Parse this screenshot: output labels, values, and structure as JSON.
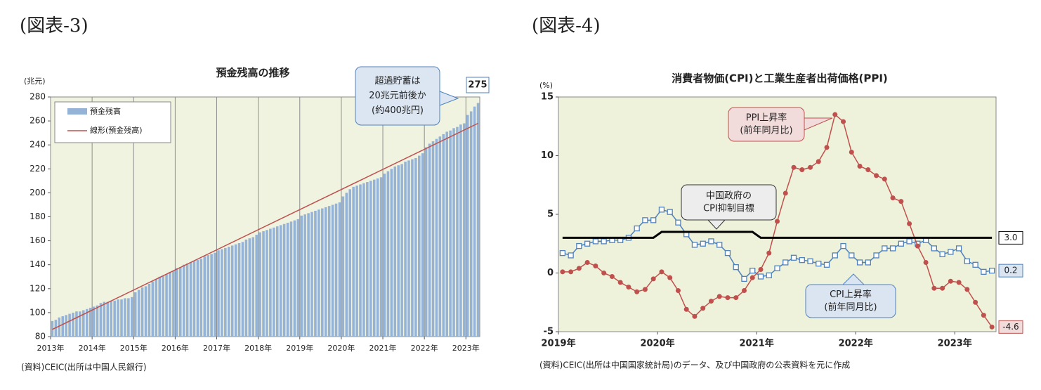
{
  "chart_data": [
    {
      "type": "bar",
      "figure_label": "(図表-3)",
      "title": "預金残高の推移",
      "y_unit": "(兆元)",
      "source": "(資料)CEIC(出所は中国人民銀行)",
      "background": "#f1f3e1",
      "xgrid": true,
      "legend": "upper left",
      "categories": [
        "2013年",
        null,
        null,
        null,
        null,
        null,
        null,
        null,
        null,
        null,
        null,
        null,
        "2014年",
        null,
        null,
        null,
        null,
        null,
        null,
        null,
        null,
        null,
        null,
        null,
        "2015年",
        null,
        null,
        null,
        null,
        null,
        null,
        null,
        null,
        null,
        null,
        null,
        "2016年",
        null,
        null,
        null,
        null,
        null,
        null,
        null,
        null,
        null,
        null,
        null,
        "2017年",
        null,
        null,
        null,
        null,
        null,
        null,
        null,
        null,
        null,
        null,
        null,
        "2018年",
        null,
        null,
        null,
        null,
        null,
        null,
        null,
        null,
        null,
        null,
        null,
        "2019年",
        null,
        null,
        null,
        null,
        null,
        null,
        null,
        null,
        null,
        null,
        null,
        "2020年",
        null,
        null,
        null,
        null,
        null,
        null,
        null,
        null,
        null,
        null,
        null,
        "2021年",
        null,
        null,
        null,
        null,
        null,
        null,
        null,
        null,
        null,
        null,
        null,
        "2022年",
        null,
        null,
        null,
        null,
        null,
        null,
        null,
        null,
        null,
        null,
        null,
        "2023年",
        null,
        null,
        null
      ],
      "series": [
        {
          "name": "預金残高",
          "color": "#95b3d7",
          "values": [
            93,
            94,
            96,
            97,
            98,
            99,
            100,
            101,
            101,
            102,
            103,
            104,
            105,
            106,
            108,
            109,
            109,
            110,
            110,
            111,
            111,
            112,
            112,
            113,
            117,
            119,
            121,
            122,
            124,
            126,
            128,
            130,
            131,
            132,
            134,
            135,
            137,
            138,
            140,
            141,
            142,
            143,
            144,
            145,
            147,
            148,
            149,
            150,
            152,
            153,
            154,
            155,
            156,
            157,
            158,
            159,
            161,
            162,
            163,
            165,
            167,
            168,
            169,
            170,
            171,
            172,
            173,
            174,
            175,
            176,
            177,
            178,
            181,
            182,
            183,
            184,
            185,
            186,
            187,
            188,
            189,
            190,
            191,
            192,
            197,
            200,
            203,
            205,
            206,
            207,
            208,
            209,
            210,
            211,
            212,
            213,
            216,
            218,
            220,
            222,
            223,
            224,
            226,
            227,
            228,
            229,
            231,
            233,
            238,
            241,
            243,
            245,
            247,
            249,
            251,
            252,
            254,
            255,
            257,
            258,
            265,
            268,
            272,
            275
          ]
        }
      ],
      "trend": {
        "name": "線形(預金残高)",
        "color": "#c0504d",
        "values": [
          86,
          258
        ]
      },
      "annotations": [
        {
          "lines": [
            "超過貯蓄は",
            "20兆元前後か",
            "(約400兆円)"
          ]
        }
      ],
      "ylim": [
        80,
        280
      ],
      "yticks": [
        80,
        100,
        120,
        140,
        160,
        180,
        200,
        220,
        240,
        260,
        280
      ]
    },
    {
      "type": "line",
      "figure_label": "(図表-4)",
      "title": "消費者物価(CPI)と工業生産者出荷価格(PPI)",
      "y_unit": "(%)",
      "source": "(資料)CEIC(出所は中国国家統計局)のデータ、及び中国政府の公表資料を元に作成",
      "background": "#eef2da",
      "end_labels": true,
      "categories": [
        "2019年",
        null,
        null,
        null,
        null,
        null,
        null,
        null,
        null,
        null,
        null,
        null,
        "2020年",
        null,
        null,
        null,
        null,
        null,
        null,
        null,
        null,
        null,
        null,
        null,
        "2021年",
        null,
        null,
        null,
        null,
        null,
        null,
        null,
        null,
        null,
        null,
        null,
        "2022年",
        null,
        null,
        null,
        null,
        null,
        null,
        null,
        null,
        null,
        null,
        null,
        "2023年",
        null,
        null,
        null,
        null
      ],
      "series": [
        {
          "color": "#4f81bd",
          "marker": "square",
          "label_fill": "#dbe5f1",
          "values": [
            1.7,
            1.5,
            2.3,
            2.5,
            2.7,
            2.7,
            2.8,
            2.8,
            3.0,
            3.8,
            4.5,
            4.5,
            5.4,
            5.2,
            4.3,
            3.3,
            2.4,
            2.5,
            2.7,
            2.4,
            1.7,
            0.5,
            -0.5,
            0.2,
            -0.3,
            -0.2,
            0.4,
            0.9,
            1.3,
            1.1,
            1.0,
            0.8,
            0.7,
            1.5,
            2.3,
            1.5,
            0.9,
            0.9,
            1.5,
            2.1,
            2.1,
            2.5,
            2.7,
            2.5,
            2.8,
            2.1,
            1.6,
            1.8,
            2.1,
            1.0,
            0.7,
            0.1,
            0.2
          ]
        },
        {
          "color": "#c0504d",
          "marker": "circle",
          "label_fill": "#f2dcdb",
          "values": [
            0.1,
            0.1,
            0.4,
            0.9,
            0.6,
            0.0,
            -0.3,
            -0.8,
            -1.2,
            -1.6,
            -1.4,
            -0.5,
            0.1,
            -0.4,
            -1.5,
            -3.1,
            -3.7,
            -3.0,
            -2.4,
            -2.0,
            -2.1,
            -2.1,
            -1.5,
            -0.4,
            0.3,
            1.7,
            4.4,
            6.8,
            9.0,
            8.8,
            9.0,
            9.5,
            10.7,
            13.5,
            12.9,
            10.3,
            9.1,
            8.8,
            8.3,
            8.0,
            6.4,
            6.1,
            4.2,
            2.3,
            0.9,
            -1.3,
            -1.3,
            -0.7,
            -0.8,
            -1.4,
            -2.5,
            -3.6,
            -4.6
          ]
        },
        {
          "color": "#000000",
          "marker": "none",
          "label_fill": "#ffffff",
          "values": [
            3,
            3,
            3,
            3,
            3,
            3,
            3,
            3,
            3,
            3,
            3,
            3,
            3.5,
            3.5,
            3.5,
            3.5,
            3.5,
            3.5,
            3.5,
            3.5,
            3.5,
            3.5,
            3.5,
            3.5,
            3,
            3,
            3,
            3,
            3,
            3,
            3,
            3,
            3,
            3,
            3,
            3,
            3,
            3,
            3,
            3,
            3,
            3,
            3,
            3,
            3,
            3,
            3,
            3,
            3,
            3,
            3,
            3,
            3
          ],
          "value_labels": {
            "52": "3.0"
          }
        }
      ],
      "annotations": [
        {
          "lines": [
            "PPI上昇率",
            "(前年同月比)"
          ]
        },
        {
          "lines": [
            "中国政府の",
            "CPI抑制目標"
          ]
        },
        {
          "lines": [
            "CPI上昇率",
            "(前年同月比)"
          ]
        }
      ],
      "ylim": [
        -5,
        15
      ],
      "yticks": [
        -5,
        0,
        5,
        10,
        15
      ]
    }
  ]
}
